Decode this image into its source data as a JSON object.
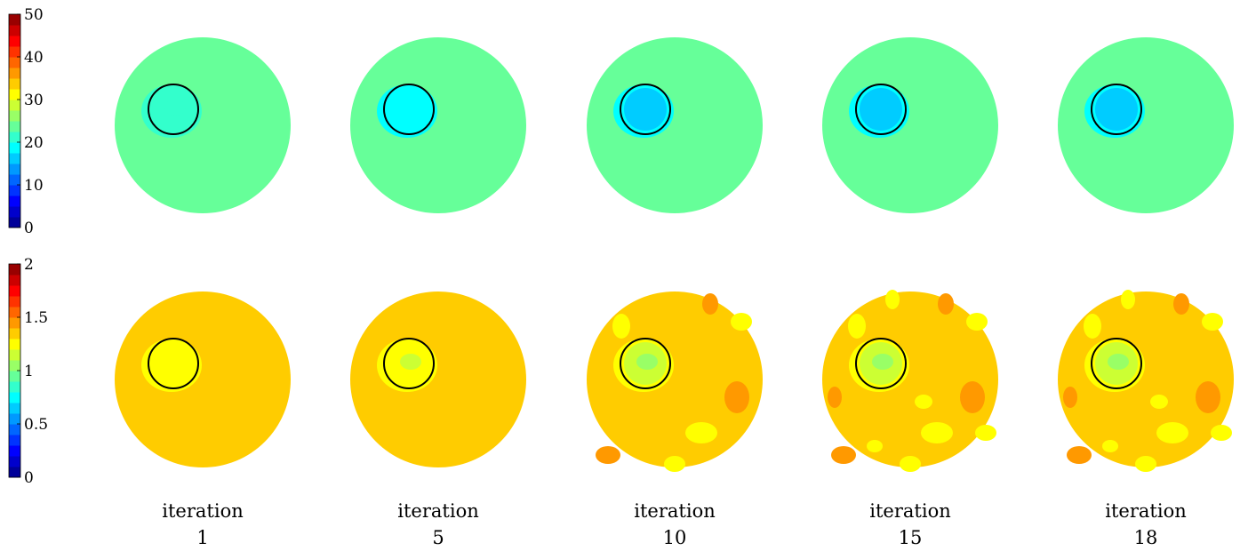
{
  "chart_data": [
    {
      "type": "heatmap",
      "title": "",
      "colorbar": {
        "min": 0,
        "max": 50,
        "levels": 20,
        "ticks": [
          0,
          10,
          20,
          30,
          40,
          50
        ],
        "tick_labels": [
          "0",
          "10",
          "20",
          "30",
          "40",
          "50"
        ]
      },
      "panels": [
        {
          "iteration": 1,
          "background": 23.5,
          "inclusion_outer": 21.5,
          "inclusion_core": 21.5
        },
        {
          "iteration": 5,
          "background": 23.5,
          "inclusion_outer": 19,
          "inclusion_core": 18
        },
        {
          "iteration": 10,
          "background": 23.5,
          "inclusion_outer": 19,
          "inclusion_core": 15
        },
        {
          "iteration": 15,
          "background": 23.5,
          "inclusion_outer": 19,
          "inclusion_core": 15
        },
        {
          "iteration": 18,
          "background": 23.5,
          "inclusion_outer": 19,
          "inclusion_core": 15
        }
      ]
    },
    {
      "type": "heatmap",
      "title": "",
      "colorbar": {
        "min": 0,
        "max": 2,
        "levels": 20,
        "ticks": [
          0,
          0.5,
          1,
          1.5,
          2
        ],
        "tick_labels": [
          "0",
          "0.5",
          "1",
          "1.5",
          "2"
        ]
      },
      "panels": [
        {
          "iteration": 1,
          "background": 1.35,
          "inclusion_outer": 1.25,
          "inclusion_core": 1.25
        },
        {
          "iteration": 5,
          "background": 1.35,
          "inclusion_outer": 1.25,
          "inclusion_core": 1.15
        },
        {
          "iteration": 10,
          "background": 1.35,
          "inclusion_outer": 1.25,
          "inclusion_core": 1.05
        },
        {
          "iteration": 15,
          "background": 1.35,
          "inclusion_outer": 1.25,
          "inclusion_core": 1.05
        },
        {
          "iteration": 18,
          "background": 1.35,
          "inclusion_outer": 1.25,
          "inclusion_core": 1.05
        }
      ]
    }
  ],
  "iterations": [
    {
      "word": "iteration",
      "number": "1"
    },
    {
      "word": "iteration",
      "number": "5"
    },
    {
      "word": "iteration",
      "number": "10"
    },
    {
      "word": "iteration",
      "number": "15"
    },
    {
      "word": "iteration",
      "number": "18"
    }
  ]
}
